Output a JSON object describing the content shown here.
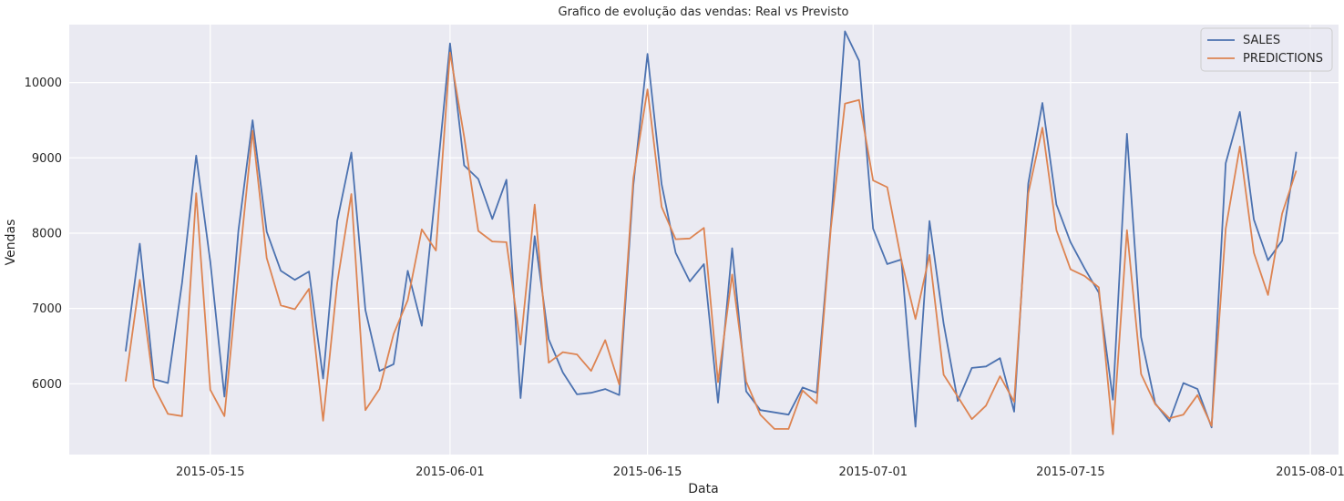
{
  "chart_data": {
    "type": "line",
    "title": "Grafico de evolução das vendas: Real vs Previsto",
    "xlabel": "Data",
    "ylabel": "Vendas",
    "x_tick_labels": [
      "2015-05-15",
      "2015-06-01",
      "2015-06-15",
      "2015-07-01",
      "2015-07-15",
      "2015-08-01"
    ],
    "x_tick_dates": [
      "2015-05-15",
      "2015-06-01",
      "2015-06-15",
      "2015-07-01",
      "2015-07-15",
      "2015-08-01"
    ],
    "y_tick_labels": [
      "6000",
      "7000",
      "8000",
      "9000",
      "10000"
    ],
    "y_tick_values": [
      6000,
      7000,
      8000,
      9000,
      10000
    ],
    "xlim": [
      "2015-05-05",
      "2015-08-03"
    ],
    "ylim": [
      5060,
      10770
    ],
    "grid": true,
    "legend_position": "top-right",
    "background_color": "#EAEAF2",
    "grid_color": "#ffffff",
    "x": [
      "2015-05-09",
      "2015-05-10",
      "2015-05-11",
      "2015-05-12",
      "2015-05-13",
      "2015-05-14",
      "2015-05-15",
      "2015-05-16",
      "2015-05-17",
      "2015-05-18",
      "2015-05-19",
      "2015-05-20",
      "2015-05-21",
      "2015-05-22",
      "2015-05-23",
      "2015-05-24",
      "2015-05-25",
      "2015-05-26",
      "2015-05-27",
      "2015-05-28",
      "2015-05-29",
      "2015-05-30",
      "2015-05-31",
      "2015-06-01",
      "2015-06-02",
      "2015-06-03",
      "2015-06-04",
      "2015-06-05",
      "2015-06-06",
      "2015-06-07",
      "2015-06-08",
      "2015-06-09",
      "2015-06-10",
      "2015-06-11",
      "2015-06-12",
      "2015-06-13",
      "2015-06-14",
      "2015-06-15",
      "2015-06-16",
      "2015-06-17",
      "2015-06-18",
      "2015-06-19",
      "2015-06-20",
      "2015-06-21",
      "2015-06-22",
      "2015-06-23",
      "2015-06-24",
      "2015-06-25",
      "2015-06-26",
      "2015-06-27",
      "2015-06-28",
      "2015-06-29",
      "2015-06-30",
      "2015-07-01",
      "2015-07-02",
      "2015-07-03",
      "2015-07-04",
      "2015-07-05",
      "2015-07-06",
      "2015-07-07",
      "2015-07-08",
      "2015-07-09",
      "2015-07-10",
      "2015-07-11",
      "2015-07-12",
      "2015-07-13",
      "2015-07-14",
      "2015-07-15",
      "2015-07-16",
      "2015-07-17",
      "2015-07-18",
      "2015-07-19",
      "2015-07-20",
      "2015-07-21",
      "2015-07-22",
      "2015-07-23",
      "2015-07-24",
      "2015-07-25",
      "2015-07-26",
      "2015-07-27",
      "2015-07-28",
      "2015-07-29",
      "2015-07-30",
      "2015-07-31"
    ],
    "series": [
      {
        "name": "SALES",
        "color": "#4C72B0",
        "values": [
          6430,
          7860,
          6060,
          6010,
          7340,
          9030,
          7620,
          5830,
          8040,
          9500,
          8020,
          7500,
          7380,
          7490,
          6070,
          8160,
          9070,
          6980,
          6170,
          6260,
          7500,
          6770,
          8600,
          10520,
          8900,
          8720,
          8190,
          8710,
          5810,
          7960,
          6590,
          6150,
          5860,
          5880,
          5930,
          5850,
          8640,
          10380,
          8650,
          7740,
          7360,
          7590,
          5750,
          7800,
          5900,
          5650,
          5620,
          5590,
          5950,
          5880,
          8100,
          10680,
          10290,
          8060,
          7590,
          7650,
          5430,
          8160,
          6800,
          5770,
          6210,
          6230,
          6340,
          5630,
          8660,
          9730,
          8380,
          7880,
          7530,
          7210,
          5790,
          9320,
          6620,
          5740,
          5500,
          6010,
          5930,
          5420,
          8930,
          9610,
          8180,
          7640,
          7900,
          9080
        ]
      },
      {
        "name": "PREDICTIONS",
        "color": "#DD8452",
        "values": [
          6030,
          7380,
          5960,
          5600,
          5570,
          8530,
          5920,
          5570,
          7500,
          9360,
          7670,
          7040,
          6990,
          7260,
          5510,
          7340,
          8520,
          5650,
          5930,
          6660,
          7110,
          8050,
          7770,
          10400,
          9280,
          8030,
          7890,
          7880,
          6520,
          8380,
          6280,
          6420,
          6390,
          6170,
          6580,
          5990,
          8730,
          9910,
          8350,
          7920,
          7930,
          8070,
          6020,
          7450,
          6030,
          5590,
          5400,
          5400,
          5910,
          5740,
          8060,
          9720,
          9770,
          8700,
          8610,
          7640,
          6860,
          7710,
          6120,
          5830,
          5530,
          5710,
          6100,
          5760,
          8530,
          9400,
          8040,
          7520,
          7430,
          7280,
          5330,
          8040,
          6130,
          5730,
          5540,
          5590,
          5850,
          5440,
          8060,
          9150,
          7740,
          7180,
          8260,
          8830
        ]
      }
    ]
  }
}
